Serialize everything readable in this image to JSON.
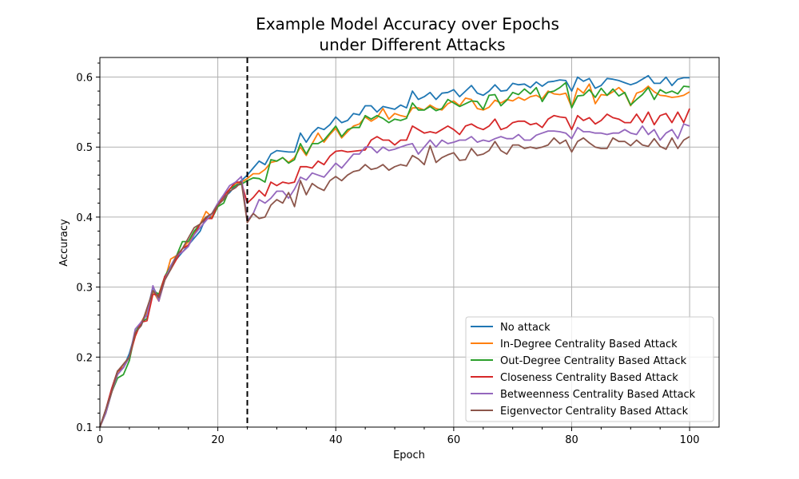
{
  "chart_data": {
    "type": "line",
    "title": [
      "Example Model Accuracy over Epochs",
      "under Different Attacks"
    ],
    "xlabel": "Epoch",
    "ylabel": "Accuracy",
    "xlim": [
      0,
      105
    ],
    "ylim": [
      0.1,
      0.628
    ],
    "xticks": [
      0,
      20,
      40,
      60,
      80,
      100
    ],
    "yticks": [
      0.1,
      0.2,
      0.3,
      0.4,
      0.5,
      0.6
    ],
    "xtick_labels": [
      "0",
      "20",
      "40",
      "60",
      "80",
      "100"
    ],
    "ytick_labels": [
      "0.1",
      "0.2",
      "0.3",
      "0.4",
      "0.5",
      "0.6"
    ],
    "grid": true,
    "legend_position": "lower right",
    "vline": {
      "x": 25,
      "style": "dashed",
      "color": "#000000"
    },
    "x": [
      0,
      1,
      2,
      3,
      4,
      5,
      6,
      7,
      8,
      9,
      10,
      11,
      12,
      13,
      14,
      15,
      16,
      17,
      18,
      19,
      20,
      21,
      22,
      23,
      24,
      25,
      26,
      27,
      28,
      29,
      30,
      31,
      32,
      33,
      34,
      35,
      36,
      37,
      38,
      39,
      40,
      41,
      42,
      43,
      44,
      45,
      46,
      47,
      48,
      49,
      50,
      51,
      52,
      53,
      54,
      55,
      56,
      57,
      58,
      59,
      60,
      61,
      62,
      63,
      64,
      65,
      66,
      67,
      68,
      69,
      70,
      71,
      72,
      73,
      74,
      75,
      76,
      77,
      78,
      79,
      80,
      81,
      82,
      83,
      84,
      85,
      86,
      87,
      88,
      89,
      90,
      91,
      92,
      93,
      94,
      95,
      96,
      97,
      98,
      99,
      100
    ],
    "series": [
      {
        "name": "No attack",
        "color": "#1f77b4",
        "values": [
          0.1,
          0.125,
          0.155,
          0.18,
          0.185,
          0.205,
          0.235,
          0.245,
          0.265,
          0.3,
          0.285,
          0.315,
          0.33,
          0.34,
          0.35,
          0.36,
          0.37,
          0.38,
          0.4,
          0.4,
          0.418,
          0.428,
          0.435,
          0.445,
          0.452,
          0.46,
          0.47,
          0.48,
          0.475,
          0.49,
          0.495,
          0.494,
          0.493,
          0.493,
          0.52,
          0.507,
          0.52,
          0.528,
          0.525,
          0.532,
          0.543,
          0.535,
          0.538,
          0.548,
          0.546,
          0.559,
          0.559,
          0.55,
          0.558,
          0.556,
          0.554,
          0.56,
          0.556,
          0.58,
          0.568,
          0.572,
          0.578,
          0.568,
          0.577,
          0.578,
          0.582,
          0.572,
          0.58,
          0.588,
          0.577,
          0.574,
          0.58,
          0.589,
          0.58,
          0.581,
          0.591,
          0.589,
          0.59,
          0.585,
          0.593,
          0.587,
          0.593,
          0.594,
          0.596,
          0.595,
          0.58,
          0.6,
          0.594,
          0.598,
          0.584,
          0.588,
          0.598,
          0.597,
          0.595,
          0.592,
          0.589,
          0.592,
          0.597,
          0.602,
          0.591,
          0.591,
          0.6,
          0.588,
          0.597,
          0.599,
          0.599
        ]
      },
      {
        "name": "In-Degree Centrality Based Attack",
        "color": "#ff7f0e",
        "values": [
          0.1,
          0.12,
          0.15,
          0.175,
          0.19,
          0.2,
          0.23,
          0.25,
          0.265,
          0.295,
          0.28,
          0.31,
          0.34,
          0.345,
          0.355,
          0.365,
          0.378,
          0.39,
          0.408,
          0.4,
          0.415,
          0.43,
          0.44,
          0.448,
          0.45,
          0.455,
          0.462,
          0.462,
          0.468,
          0.478,
          0.48,
          0.485,
          0.478,
          0.485,
          0.5,
          0.488,
          0.505,
          0.52,
          0.507,
          0.518,
          0.527,
          0.513,
          0.522,
          0.53,
          0.533,
          0.543,
          0.537,
          0.542,
          0.555,
          0.54,
          0.548,
          0.545,
          0.543,
          0.556,
          0.556,
          0.553,
          0.56,
          0.555,
          0.553,
          0.562,
          0.566,
          0.559,
          0.57,
          0.568,
          0.555,
          0.553,
          0.557,
          0.567,
          0.563,
          0.568,
          0.566,
          0.571,
          0.567,
          0.572,
          0.574,
          0.569,
          0.58,
          0.576,
          0.575,
          0.577,
          0.557,
          0.584,
          0.577,
          0.59,
          0.562,
          0.575,
          0.574,
          0.579,
          0.585,
          0.577,
          0.559,
          0.577,
          0.58,
          0.587,
          0.579,
          0.574,
          0.573,
          0.571,
          0.572,
          0.574,
          0.579
        ]
      },
      {
        "name": "Out-Degree Centrality Based Attack",
        "color": "#2ca02c",
        "values": [
          0.1,
          0.12,
          0.15,
          0.17,
          0.175,
          0.195,
          0.235,
          0.25,
          0.255,
          0.295,
          0.29,
          0.315,
          0.33,
          0.345,
          0.365,
          0.365,
          0.38,
          0.39,
          0.4,
          0.398,
          0.415,
          0.42,
          0.44,
          0.445,
          0.447,
          0.452,
          0.456,
          0.455,
          0.45,
          0.482,
          0.48,
          0.485,
          0.477,
          0.482,
          0.505,
          0.49,
          0.505,
          0.505,
          0.51,
          0.52,
          0.53,
          0.515,
          0.525,
          0.528,
          0.528,
          0.545,
          0.54,
          0.545,
          0.541,
          0.535,
          0.54,
          0.538,
          0.541,
          0.563,
          0.553,
          0.553,
          0.558,
          0.552,
          0.555,
          0.568,
          0.563,
          0.558,
          0.562,
          0.566,
          0.565,
          0.554,
          0.574,
          0.575,
          0.559,
          0.567,
          0.578,
          0.575,
          0.583,
          0.576,
          0.585,
          0.565,
          0.578,
          0.58,
          0.585,
          0.592,
          0.556,
          0.573,
          0.574,
          0.582,
          0.571,
          0.584,
          0.574,
          0.583,
          0.573,
          0.578,
          0.56,
          0.568,
          0.575,
          0.585,
          0.568,
          0.582,
          0.577,
          0.58,
          0.576,
          0.587,
          0.586
        ]
      },
      {
        "name": "Closeness Centrality Based Attack",
        "color": "#d62728",
        "values": [
          0.1,
          0.125,
          0.155,
          0.18,
          0.185,
          0.2,
          0.23,
          0.25,
          0.252,
          0.29,
          0.288,
          0.315,
          0.325,
          0.34,
          0.355,
          0.36,
          0.375,
          0.39,
          0.398,
          0.398,
          0.418,
          0.43,
          0.44,
          0.45,
          0.45,
          0.42,
          0.428,
          0.438,
          0.43,
          0.45,
          0.445,
          0.45,
          0.448,
          0.45,
          0.472,
          0.472,
          0.47,
          0.48,
          0.475,
          0.487,
          0.494,
          0.495,
          0.493,
          0.494,
          0.495,
          0.496,
          0.51,
          0.515,
          0.51,
          0.51,
          0.503,
          0.51,
          0.51,
          0.53,
          0.525,
          0.52,
          0.522,
          0.52,
          0.525,
          0.53,
          0.525,
          0.518,
          0.53,
          0.533,
          0.528,
          0.525,
          0.53,
          0.54,
          0.525,
          0.528,
          0.535,
          0.537,
          0.537,
          0.532,
          0.534,
          0.528,
          0.54,
          0.545,
          0.543,
          0.542,
          0.525,
          0.545,
          0.538,
          0.542,
          0.533,
          0.538,
          0.547,
          0.542,
          0.54,
          0.535,
          0.535,
          0.547,
          0.535,
          0.55,
          0.532,
          0.545,
          0.548,
          0.535,
          0.55,
          0.535,
          0.555
        ]
      },
      {
        "name": "Betweenness Centrality Based Attack",
        "color": "#9467bd",
        "values": [
          0.1,
          0.12,
          0.15,
          0.175,
          0.185,
          0.2,
          0.24,
          0.25,
          0.26,
          0.302,
          0.28,
          0.31,
          0.33,
          0.345,
          0.35,
          0.358,
          0.375,
          0.385,
          0.395,
          0.405,
          0.42,
          0.432,
          0.445,
          0.45,
          0.458,
          0.395,
          0.405,
          0.425,
          0.42,
          0.427,
          0.437,
          0.437,
          0.427,
          0.44,
          0.457,
          0.453,
          0.463,
          0.46,
          0.457,
          0.467,
          0.477,
          0.47,
          0.48,
          0.49,
          0.49,
          0.5,
          0.5,
          0.492,
          0.5,
          0.495,
          0.497,
          0.5,
          0.503,
          0.505,
          0.49,
          0.5,
          0.51,
          0.5,
          0.51,
          0.505,
          0.507,
          0.51,
          0.51,
          0.515,
          0.507,
          0.51,
          0.508,
          0.512,
          0.515,
          0.512,
          0.512,
          0.518,
          0.51,
          0.51,
          0.517,
          0.52,
          0.523,
          0.523,
          0.522,
          0.52,
          0.512,
          0.528,
          0.522,
          0.522,
          0.52,
          0.52,
          0.518,
          0.52,
          0.52,
          0.525,
          0.52,
          0.518,
          0.53,
          0.518,
          0.525,
          0.51,
          0.52,
          0.525,
          0.512,
          0.533,
          0.53
        ]
      },
      {
        "name": "Eigenvector Centrality Based Attack",
        "color": "#8c564b",
        "values": [
          0.1,
          0.125,
          0.15,
          0.18,
          0.19,
          0.2,
          0.235,
          0.245,
          0.27,
          0.295,
          0.285,
          0.31,
          0.325,
          0.345,
          0.355,
          0.37,
          0.385,
          0.39,
          0.4,
          0.405,
          0.417,
          0.425,
          0.437,
          0.442,
          0.45,
          0.392,
          0.405,
          0.398,
          0.4,
          0.417,
          0.425,
          0.42,
          0.435,
          0.415,
          0.452,
          0.432,
          0.448,
          0.442,
          0.438,
          0.452,
          0.458,
          0.452,
          0.46,
          0.465,
          0.467,
          0.475,
          0.468,
          0.47,
          0.475,
          0.467,
          0.472,
          0.475,
          0.473,
          0.488,
          0.483,
          0.475,
          0.502,
          0.478,
          0.485,
          0.489,
          0.492,
          0.481,
          0.482,
          0.498,
          0.488,
          0.49,
          0.495,
          0.508,
          0.495,
          0.49,
          0.503,
          0.503,
          0.498,
          0.5,
          0.498,
          0.5,
          0.503,
          0.513,
          0.505,
          0.51,
          0.493,
          0.508,
          0.513,
          0.506,
          0.5,
          0.498,
          0.498,
          0.513,
          0.508,
          0.508,
          0.502,
          0.51,
          0.503,
          0.501,
          0.512,
          0.501,
          0.497,
          0.513,
          0.498,
          0.51,
          0.515
        ]
      }
    ]
  }
}
